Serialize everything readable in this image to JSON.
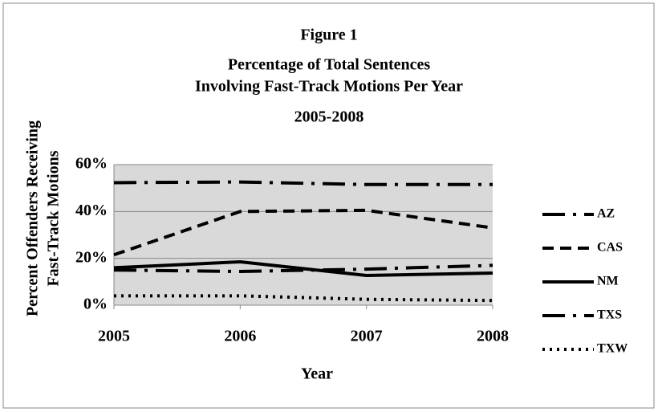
{
  "chart_data": {
    "type": "line",
    "title": "Figure 1",
    "subtitle": [
      "Percentage of Total Sentences",
      "Involving Fast-Track Motions Per Year",
      "2005-2008"
    ],
    "y_label": [
      "Percent Offenders Receiving",
      "Fast-Track Motions"
    ],
    "x_label": "Year",
    "x": [
      2005,
      2006,
      2007,
      2008
    ],
    "xlim": [
      2005,
      2008
    ],
    "xticks": [
      2005,
      2006,
      2007,
      2008
    ],
    "ylim": [
      0,
      60
    ],
    "yticks": [
      {
        "value": 0,
        "label": "0%"
      },
      {
        "value": 20,
        "label": "20%"
      },
      {
        "value": 40,
        "label": "40%"
      },
      {
        "value": 60,
        "label": "60%"
      }
    ],
    "grid": true,
    "legend": "right",
    "series": [
      {
        "name": "AZ",
        "color": "#000000",
        "dash": "long-dash-dot",
        "values": [
          52.3,
          52.6,
          51.5,
          51.5
        ]
      },
      {
        "name": "CAS",
        "color": "#000000",
        "dash": "dash",
        "values": [
          21.5,
          40,
          40.5,
          33
        ]
      },
      {
        "name": "NM",
        "color": "#000000",
        "dash": "solid",
        "values": [
          16,
          18.5,
          12.7,
          13.7
        ]
      },
      {
        "name": "TXS",
        "color": "#000000",
        "dash": "long-dash-dot",
        "values": [
          15,
          14.4,
          15.4,
          17
        ]
      },
      {
        "name": "TXW",
        "color": "#000000",
        "dash": "dot",
        "values": [
          4,
          4,
          2.5,
          2
        ]
      }
    ]
  }
}
